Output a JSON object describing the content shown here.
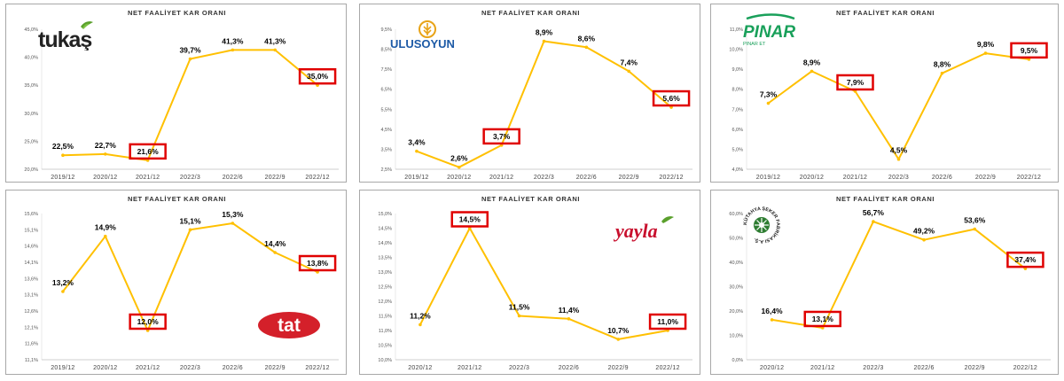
{
  "chart_data": [
    {
      "type": "line",
      "title": "NET FAALİYET KAR ORANI",
      "logo_text": "tukaş",
      "categories": [
        "2019/12",
        "2020/12",
        "2021/12",
        "2022/3",
        "2022/6",
        "2022/9",
        "2022/12"
      ],
      "series": [
        {
          "values": [
            22.5,
            22.7,
            21.6,
            39.7,
            41.3,
            41.3,
            35.0
          ]
        }
      ],
      "value_labels": [
        "22,5%",
        "22,7%",
        "21,6%",
        "39,7%",
        "41,3%",
        "41,3%",
        "35,0%"
      ],
      "highlighted_points": [
        2,
        6
      ],
      "yticks": [
        "45,0%",
        "40,0%",
        "35,0%",
        "30,0%",
        "25,0%",
        "20,0%"
      ],
      "ylim": [
        20,
        45
      ],
      "line_color": "#ffc000",
      "highlight_color": "#e00000"
    },
    {
      "type": "line",
      "title": "NET FAALİYET KAR ORANI",
      "logo_text": "ULUSOYUN",
      "categories": [
        "2019/12",
        "2020/12",
        "2021/12",
        "2022/3",
        "2022/6",
        "2022/9",
        "2022/12"
      ],
      "series": [
        {
          "values": [
            3.4,
            2.6,
            3.7,
            8.9,
            8.6,
            7.4,
            5.6
          ]
        }
      ],
      "value_labels": [
        "3,4%",
        "2,6%",
        "3,7%",
        "8,9%",
        "8,6%",
        "7,4%",
        "5,6%"
      ],
      "highlighted_points": [
        2,
        6
      ],
      "yticks": [
        "9,5%",
        "8,5%",
        "7,5%",
        "6,5%",
        "5,5%",
        "4,5%",
        "3,5%",
        "2,5%"
      ],
      "ylim": [
        2.5,
        9.5
      ],
      "line_color": "#ffc000",
      "highlight_color": "#e00000"
    },
    {
      "type": "line",
      "title": "NET FAALİYET KAR ORANI",
      "logo_text": "PINAR",
      "logo_subtext": "PINAR ET",
      "categories": [
        "2019/12",
        "2020/12",
        "2021/12",
        "2022/3",
        "2022/6",
        "2022/9",
        "2022/12"
      ],
      "series": [
        {
          "values": [
            7.3,
            8.9,
            7.9,
            4.5,
            8.8,
            9.8,
            9.5
          ]
        }
      ],
      "value_labels": [
        "7,3%",
        "8,9%",
        "7,9%",
        "4,5%",
        "8,8%",
        "9,8%",
        "9,5%"
      ],
      "highlighted_points": [
        2,
        6
      ],
      "yticks": [
        "11,0%",
        "10,0%",
        "9,0%",
        "8,0%",
        "7,0%",
        "6,0%",
        "5,0%",
        "4,0%"
      ],
      "ylim": [
        4,
        11
      ],
      "line_color": "#ffc000",
      "highlight_color": "#e00000"
    },
    {
      "type": "line",
      "title": "NET FAALİYET KAR ORANI",
      "logo_text": "tat",
      "categories": [
        "2019/12",
        "2020/12",
        "2021/12",
        "2022/3",
        "2022/6",
        "2022/9",
        "2022/12"
      ],
      "series": [
        {
          "values": [
            13.2,
            14.9,
            12.0,
            15.1,
            15.3,
            14.4,
            13.8
          ]
        }
      ],
      "value_labels": [
        "13,2%",
        "14,9%",
        "12,0%",
        "15,1%",
        "15,3%",
        "14,4%",
        "13,8%"
      ],
      "highlighted_points": [
        2,
        6
      ],
      "yticks": [
        "15,6%",
        "15,1%",
        "14,6%",
        "14,1%",
        "13,6%",
        "13,1%",
        "12,6%",
        "12,1%",
        "11,6%",
        "11,1%"
      ],
      "ylim": [
        11.1,
        15.6
      ],
      "line_color": "#ffc000",
      "highlight_color": "#e00000"
    },
    {
      "type": "line",
      "title": "NET FAALİYET KAR ORANI",
      "logo_text": "yayla",
      "categories": [
        "2020/12",
        "2021/12",
        "2022/3",
        "2022/6",
        "2022/9",
        "2022/12"
      ],
      "series": [
        {
          "values": [
            11.2,
            14.5,
            11.5,
            11.4,
            10.7,
            11.0
          ]
        }
      ],
      "value_labels": [
        "11,2%",
        "14,5%",
        "11,5%",
        "11,4%",
        "10,7%",
        "11,0%"
      ],
      "highlighted_points": [
        1,
        5
      ],
      "yticks": [
        "15,0%",
        "14,5%",
        "14,0%",
        "13,5%",
        "13,0%",
        "12,5%",
        "12,0%",
        "11,5%",
        "11,0%",
        "10,5%",
        "10,0%"
      ],
      "ylim": [
        10,
        15
      ],
      "line_color": "#ffc000",
      "highlight_color": "#e00000"
    },
    {
      "type": "line",
      "title": "NET FAALİYET KAR ORANI",
      "logo_text": "KÜTAHYA ŞEKER FABRİKASI A.Ş.",
      "categories": [
        "2020/12",
        "2021/12",
        "2022/3",
        "2022/6",
        "2022/9",
        "2022/12"
      ],
      "series": [
        {
          "values": [
            16.4,
            13.1,
            56.7,
            49.2,
            53.6,
            37.4
          ]
        }
      ],
      "value_labels": [
        "16,4%",
        "13,1%",
        "56,7%",
        "49,2%",
        "53,6%",
        "37,4%"
      ],
      "highlighted_points": [
        1,
        5
      ],
      "yticks": [
        "60,0%",
        "50,0%",
        "40,0%",
        "30,0%",
        "20,0%",
        "10,0%",
        "0,0%"
      ],
      "ylim": [
        0,
        60
      ],
      "line_color": "#ffc000",
      "highlight_color": "#e00000"
    }
  ]
}
